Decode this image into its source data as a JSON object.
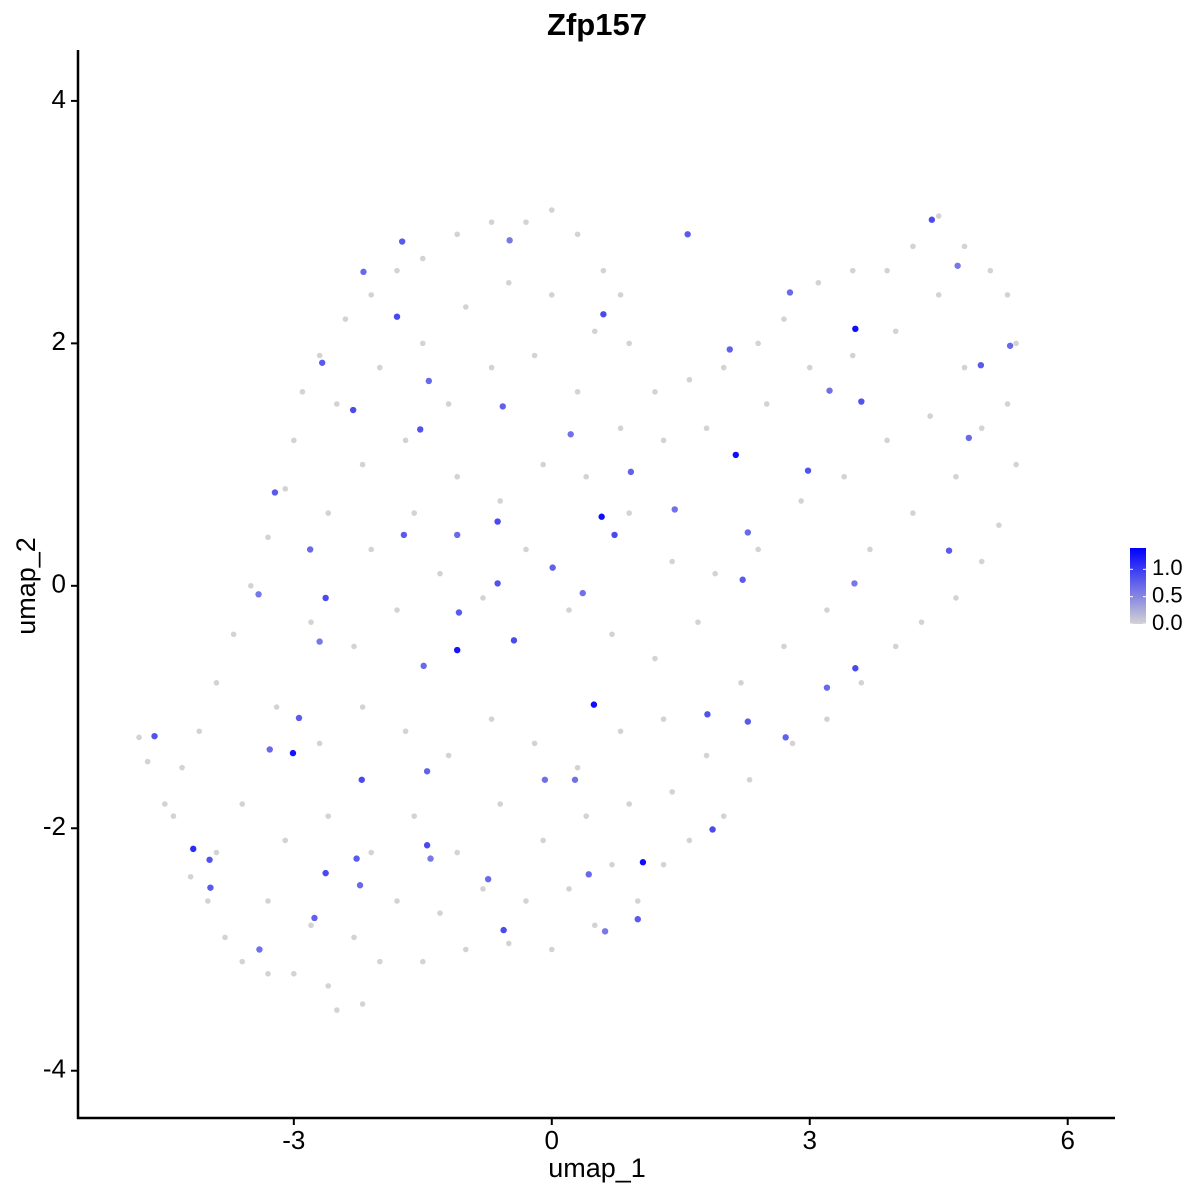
{
  "chart_data": {
    "type": "scatter",
    "title": "Zfp157",
    "x_label": "umap_1",
    "y_label": "umap_2",
    "xlim": [
      -5.51,
      6.55
    ],
    "ylim": [
      -4.39,
      4.42
    ],
    "xticks": [
      -3,
      0,
      3,
      6
    ],
    "yticks": [
      -4,
      -2,
      0,
      2,
      4
    ],
    "low_color": "#d3d3d3",
    "high_color": "#0000ff",
    "clim": [
      0,
      1.39
    ],
    "cticks": [
      {
        "value": 0,
        "label": "0.0"
      },
      {
        "value": 0.5,
        "label": "0.5"
      },
      {
        "value": 1,
        "label": "1.0"
      }
    ],
    "x": [
      -4.8,
      -4.7,
      -4.5,
      -4.2,
      -4.0,
      -3.8,
      -3.6,
      -3.3,
      -3.0,
      -2.6,
      -2.5,
      -2.2,
      -2.0,
      -1.5,
      -1.0,
      -0.5,
      0.0,
      0.5,
      1.0,
      1.3,
      1.6,
      2.0,
      2.3,
      2.8,
      3.2,
      3.6,
      4.0,
      4.3,
      4.7,
      5.0,
      5.2,
      5.4,
      5.3,
      5.4,
      5.3,
      5.1,
      4.8,
      4.5,
      4.2,
      3.9,
      3.5,
      3.1,
      2.7,
      2.4,
      2.0,
      1.6,
      1.2,
      0.9,
      0.8,
      0.6,
      0.3,
      0.0,
      -0.3,
      -0.7,
      -1.1,
      -1.5,
      -1.8,
      -2.1,
      -2.4,
      -2.7,
      -2.9,
      -3.0,
      -3.1,
      -3.3,
      -3.5,
      -3.7,
      -3.9,
      -4.1,
      -4.3,
      -2.5,
      -2.0,
      -1.5,
      -1.0,
      -0.5,
      0.0,
      0.5,
      -2.2,
      -1.7,
      -1.2,
      -0.7,
      -0.2,
      0.3,
      0.8,
      1.3,
      1.8,
      2.5,
      3.0,
      3.5,
      4.0,
      4.5,
      4.8,
      4.4,
      3.9,
      3.4,
      2.9,
      2.4,
      1.9,
      1.4,
      0.9,
      0.4,
      -0.1,
      -0.6,
      -1.1,
      -1.6,
      -2.1,
      -2.6,
      -2.8,
      -2.3,
      -1.8,
      -1.3,
      -0.8,
      -0.3,
      0.2,
      0.7,
      1.2,
      1.7,
      2.2,
      2.7,
      3.2,
      3.7,
      4.2,
      4.7,
      5.0,
      -3.2,
      -2.7,
      -2.2,
      -1.7,
      -1.2,
      -0.7,
      -0.2,
      0.3,
      0.8,
      1.3,
      1.8,
      -3.6,
      -3.1,
      -2.6,
      -2.1,
      -1.6,
      -1.1,
      -0.6,
      -0.1,
      0.4,
      0.9,
      1.4,
      -3.3,
      -2.8,
      -2.3,
      -1.8,
      -1.3,
      -0.8,
      -0.3,
      0.2,
      0.7,
      -3.9,
      -4.4,
      1.58,
      2.77,
      0.6,
      -0.49,
      -1.74,
      -2.19,
      -1.8,
      2.07,
      3.23,
      3.6,
      4.99,
      5.33,
      4.42,
      4.72,
      -2.67,
      -1.43,
      -2.31,
      -0.57,
      0.22,
      -1.53,
      -3.22,
      -2.81,
      -2.63,
      -3.41,
      -1.72,
      -1.1,
      -0.63,
      0.01,
      0.36,
      -0.63,
      -1.08,
      -1.49,
      -0.44,
      -2.7,
      -2.94,
      -3.28,
      -2.21,
      -1.45,
      0.27,
      1.81,
      2.28,
      3.2,
      3.53,
      3.52,
      2.22,
      2.28,
      0.73,
      0.92,
      1.43,
      2.98,
      4.62,
      4.85,
      -1.45,
      -1.41,
      -2.27,
      -2.23,
      -2.63,
      -2.76,
      -3.4,
      -3.98,
      -3.97,
      -0.74,
      -0.56,
      0.62,
      1.0,
      0.43,
      1.87,
      2.72,
      -0.08,
      -4.62,
      3.53,
      2.14,
      0.58,
      -1.1,
      0.49,
      -3.01,
      1.06,
      -4.17
    ],
    "values": [
      -1.25,
      -1.45,
      -1.8,
      -2.4,
      -2.6,
      -2.9,
      -3.1,
      -3.2,
      -3.2,
      -3.3,
      -3.5,
      -3.45,
      -3.1,
      -3.1,
      -3.0,
      -2.95,
      -3.0,
      -2.8,
      -2.6,
      -2.3,
      -2.1,
      -1.9,
      -1.6,
      -1.3,
      -1.1,
      -0.8,
      -0.5,
      -0.3,
      -0.1,
      0.2,
      0.5,
      1.0,
      1.5,
      2.0,
      2.4,
      2.6,
      2.8,
      3.05,
      2.8,
      2.6,
      2.6,
      2.5,
      2.2,
      2.0,
      1.8,
      1.7,
      1.6,
      2.0,
      2.4,
      2.6,
      2.9,
      3.1,
      3.0,
      3.0,
      2.9,
      2.7,
      2.6,
      2.4,
      2.2,
      1.9,
      1.6,
      1.2,
      0.8,
      0.4,
      0.0,
      -0.4,
      -0.8,
      -1.2,
      -1.5,
      1.5,
      1.8,
      2.0,
      2.3,
      2.5,
      2.4,
      2.1,
      1.0,
      1.2,
      1.5,
      1.8,
      1.9,
      1.6,
      1.3,
      1.2,
      1.3,
      1.5,
      1.8,
      1.9,
      2.1,
      2.4,
      1.8,
      1.4,
      1.2,
      0.9,
      0.7,
      0.3,
      0.1,
      0.2,
      0.6,
      0.9,
      1.0,
      0.7,
      0.9,
      0.6,
      0.3,
      0.6,
      -0.3,
      -0.5,
      -0.2,
      0.1,
      -0.1,
      0.3,
      -0.2,
      -0.4,
      -0.6,
      -0.3,
      -0.8,
      -0.5,
      -0.2,
      0.3,
      0.6,
      0.9,
      1.3,
      -1.0,
      -1.3,
      -1.0,
      -1.2,
      -1.4,
      -1.1,
      -1.3,
      -1.5,
      -1.2,
      -1.1,
      -1.4,
      -1.8,
      -2.1,
      -1.9,
      -2.2,
      -1.9,
      -2.2,
      -1.8,
      -2.1,
      -1.9,
      -1.8,
      -1.7,
      -2.6,
      -2.8,
      -2.9,
      -2.6,
      -2.7,
      -2.5,
      -2.6,
      -2.5,
      -2.3,
      -2.2,
      -1.9,
      2.9,
      2.42,
      2.24,
      2.85,
      2.84,
      2.59,
      2.22,
      1.95,
      1.61,
      1.52,
      1.82,
      1.98,
      3.02,
      2.64,
      1.84,
      1.69,
      1.45,
      1.48,
      1.25,
      1.29,
      0.77,
      0.3,
      -0.1,
      -0.07,
      0.42,
      0.42,
      0.53,
      0.15,
      -0.06,
      0.02,
      -0.22,
      -0.66,
      -0.45,
      -0.46,
      -1.09,
      -1.35,
      -1.6,
      -1.53,
      -1.6,
      -1.06,
      -1.12,
      -0.84,
      -0.68,
      0.02,
      0.05,
      0.44,
      0.42,
      0.94,
      0.63,
      0.95,
      0.29,
      1.22,
      -2.14,
      -2.25,
      -2.25,
      -2.47,
      -2.37,
      -2.74,
      -3.0,
      -2.26,
      -2.49,
      -2.42,
      -2.84,
      -2.85,
      -2.75,
      -2.38,
      -2.01,
      -1.25,
      -1.6,
      -1.24,
      2.12,
      1.08,
      0.57,
      -0.53,
      -0.98,
      -1.38,
      -2.28,
      -2.17
    ],
    "color_values": [
      0,
      0,
      0,
      0,
      0,
      0,
      0,
      0,
      0,
      0,
      0,
      0,
      0,
      0,
      0,
      0,
      0,
      0,
      0,
      0,
      0,
      0,
      0,
      0,
      0,
      0,
      0,
      0,
      0,
      0,
      0,
      0,
      0,
      0,
      0,
      0,
      0,
      0,
      0,
      0,
      0,
      0,
      0,
      0,
      0,
      0,
      0,
      0,
      0,
      0,
      0,
      0,
      0,
      0,
      0,
      0,
      0,
      0,
      0,
      0,
      0,
      0,
      0,
      0,
      0,
      0,
      0,
      0,
      0,
      0,
      0,
      0,
      0,
      0,
      0,
      0,
      0,
      0,
      0,
      0,
      0,
      0,
      0,
      0,
      0,
      0,
      0,
      0,
      0,
      0,
      0,
      0,
      0,
      0,
      0,
      0,
      0,
      0,
      0,
      0,
      0,
      0,
      0,
      0,
      0,
      0,
      0,
      0,
      0,
      0,
      0,
      0,
      0,
      0,
      0,
      0,
      0,
      0,
      0,
      0,
      0,
      0,
      0,
      0,
      0,
      0,
      0,
      0,
      0,
      0,
      0,
      0,
      0,
      0,
      0,
      0,
      0,
      0,
      0,
      0,
      0,
      0,
      0,
      0,
      0,
      0,
      0,
      0,
      0,
      0,
      0,
      0,
      0,
      0,
      0,
      0,
      0.8,
      0.7,
      0.9,
      0.6,
      0.8,
      0.7,
      0.9,
      0.75,
      0.65,
      0.85,
      0.8,
      0.7,
      0.9,
      0.6,
      0.8,
      0.7,
      0.9,
      0.75,
      0.65,
      0.85,
      0.8,
      0.7,
      0.9,
      0.6,
      0.8,
      0.7,
      0.9,
      0.75,
      0.65,
      0.85,
      0.8,
      0.7,
      0.9,
      0.6,
      0.8,
      0.7,
      0.9,
      0.75,
      0.65,
      0.85,
      0.8,
      0.7,
      0.9,
      0.6,
      0.8,
      0.7,
      0.9,
      0.75,
      0.65,
      0.85,
      0.8,
      0.7,
      0.9,
      0.6,
      0.8,
      0.7,
      0.9,
      0.75,
      0.65,
      0.85,
      0.8,
      0.7,
      0.9,
      0.6,
      0.8,
      0.7,
      0.9,
      0.75,
      0.65,
      0.85,
      1.3,
      1.3,
      1.3,
      1.25,
      1.3,
      1.25,
      1.3,
      1.1
    ]
  }
}
